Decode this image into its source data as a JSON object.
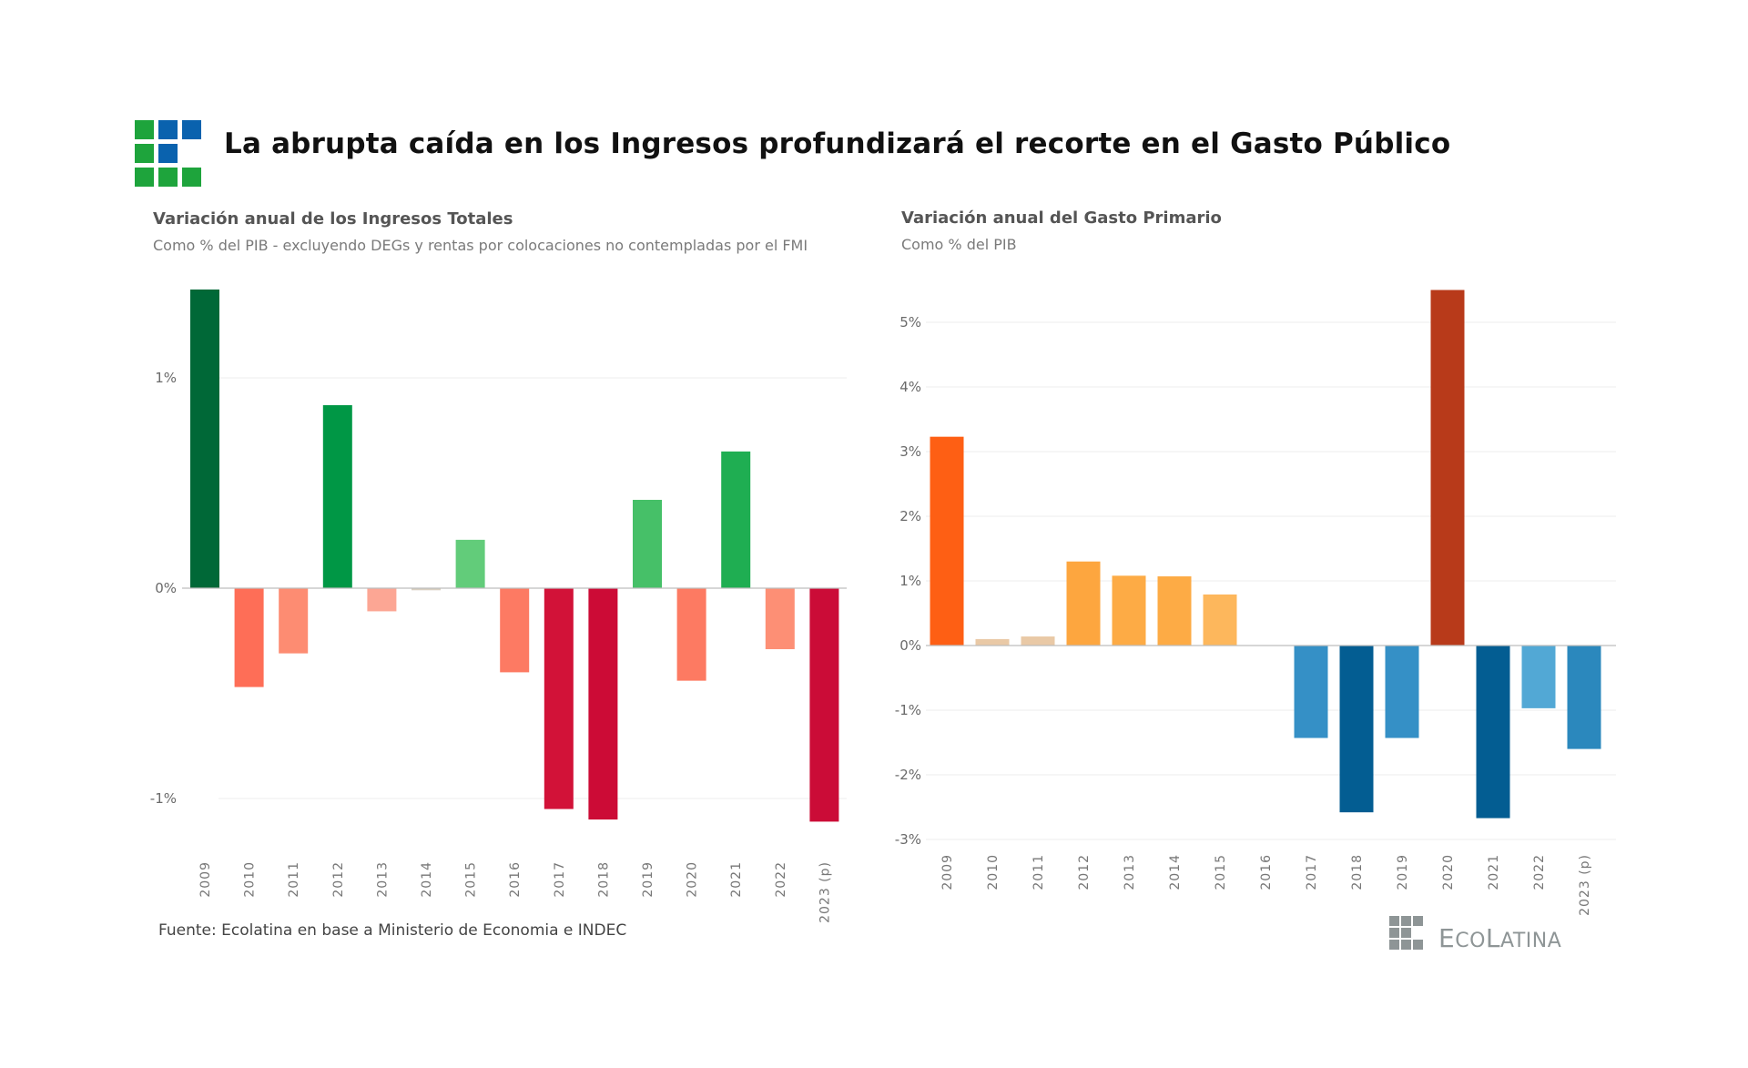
{
  "header": {
    "title": "La abrupta caída en los Ingresos profundizará el recorte en el Gasto Público",
    "logo_colors": {
      "green": "#1ea43c",
      "blue": "#0a62ae"
    }
  },
  "source": "Fuente: Ecolatina en base a Ministerio de Economia e INDEC",
  "brand": {
    "name_parts": [
      "E",
      "CO",
      "L",
      "ATINA"
    ],
    "name": "ECOLATINA",
    "color": "#8e9596"
  },
  "chart_data": [
    {
      "type": "bar",
      "title": "Variación anual de los Ingresos Totales",
      "subtitle": "Como % del PIB - excluyendo DEGs y rentas por colocaciones no contempladas por el FMI",
      "xlabel": "",
      "ylabel": "",
      "categories": [
        "2009",
        "2010",
        "2011",
        "2012",
        "2013",
        "2014",
        "2015",
        "2016",
        "2017",
        "2018",
        "2019",
        "2020",
        "2021",
        "2022",
        "2023 (p)"
      ],
      "values": [
        1.42,
        -0.47,
        -0.31,
        0.87,
        -0.11,
        -0.01,
        0.23,
        -0.4,
        -1.05,
        -1.1,
        0.42,
        -0.44,
        0.65,
        -0.29,
        -1.11
      ],
      "colors": [
        "#006837",
        "#fe6e57",
        "#fd8c72",
        "#009745",
        "#fca694",
        "#d9cfc0",
        "#62cc7a",
        "#fd7a63",
        "#d21238",
        "#cc0b36",
        "#46c068",
        "#fd7a62",
        "#1fae52",
        "#fd8f75",
        "#cb0c37"
      ],
      "yticks": [
        -1,
        0,
        1
      ],
      "ytick_labels": [
        "-1%",
        "0%",
        "1%"
      ],
      "ylim": [
        -1.2,
        1.45
      ],
      "grid": true,
      "legend": "none"
    },
    {
      "type": "bar",
      "title": "Variación anual del Gasto Primario",
      "subtitle": "Como % del PIB",
      "xlabel": "",
      "ylabel": "",
      "categories": [
        "2009",
        "2010",
        "2011",
        "2012",
        "2013",
        "2014",
        "2015",
        "2016",
        "2017",
        "2018",
        "2019",
        "2020",
        "2021",
        "2022",
        "2023 (p)"
      ],
      "values": [
        3.23,
        0.1,
        0.14,
        1.3,
        1.08,
        1.07,
        0.79,
        0.0,
        -1.43,
        -2.58,
        -1.43,
        5.5,
        -2.67,
        -0.97,
        -1.6
      ],
      "colors": [
        "#fe5f14",
        "#e9c9a6",
        "#e9c9a6",
        "#fda63f",
        "#fdab45",
        "#fdab45",
        "#fdb75c",
        "#cccccc",
        "#3590c6",
        "#035d92",
        "#3590c6",
        "#b83a1a",
        "#035d92",
        "#52a8d5",
        "#2b88bd"
      ],
      "yticks": [
        -3,
        -2,
        -1,
        0,
        1,
        2,
        3,
        4,
        5
      ],
      "ytick_labels": [
        "-3%",
        "-2%",
        "-1%",
        "0%",
        "1%",
        "2%",
        "3%",
        "4%",
        "5%"
      ],
      "ylim": [
        -3.1,
        5.5
      ],
      "grid": true,
      "legend": "none"
    }
  ]
}
